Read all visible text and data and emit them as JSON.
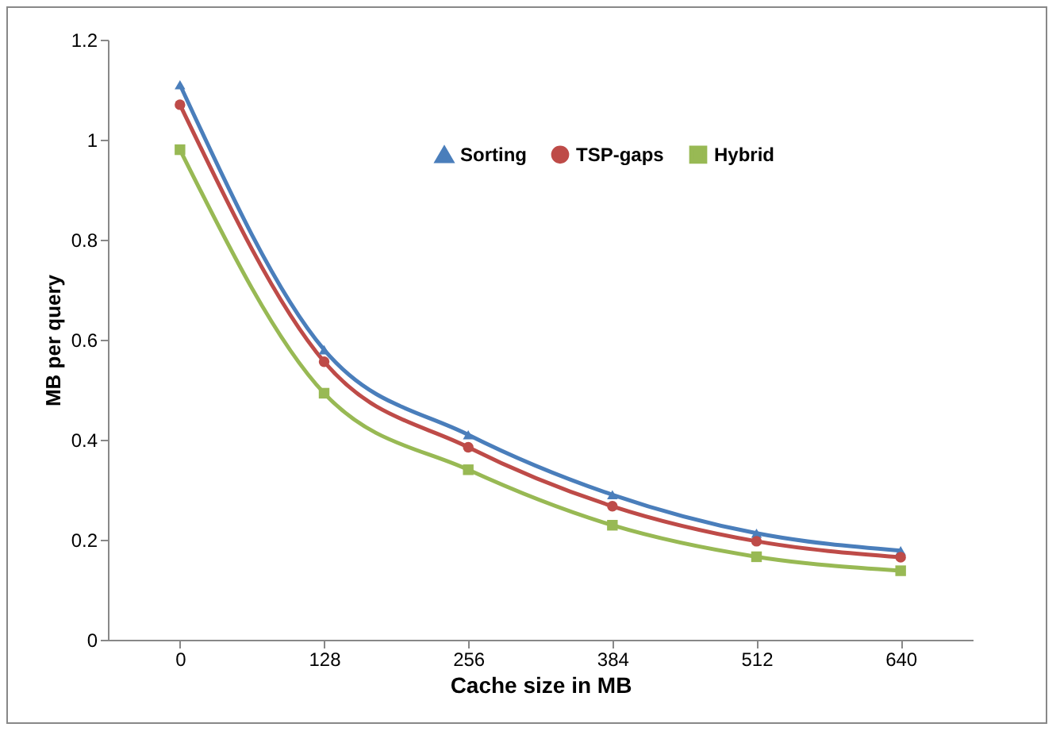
{
  "chart_data": {
    "type": "line",
    "xlabel": "Cache  size in MB",
    "ylabel": "MB per  query",
    "categories": [
      "0",
      "128",
      "256",
      "384",
      "512",
      "640"
    ],
    "series": [
      {
        "name": "Sorting",
        "color": "#4a7ebb",
        "marker": "triangle",
        "values": [
          1.11,
          0.58,
          0.41,
          0.29,
          0.213,
          0.178
        ]
      },
      {
        "name": "TSP-gaps",
        "color": "#be4b48",
        "marker": "circle",
        "values": [
          1.07,
          0.556,
          0.385,
          0.267,
          0.197,
          0.165
        ]
      },
      {
        "name": "Hybrid",
        "color": "#98b954",
        "marker": "square",
        "values": [
          0.98,
          0.493,
          0.34,
          0.229,
          0.166,
          0.138
        ]
      }
    ],
    "ylim": [
      0,
      1.2
    ],
    "yticks": [
      0,
      0.2,
      0.4,
      0.6,
      0.8,
      1,
      1.2
    ],
    "grid": false,
    "legend": "top right",
    "line_style": "solid"
  }
}
